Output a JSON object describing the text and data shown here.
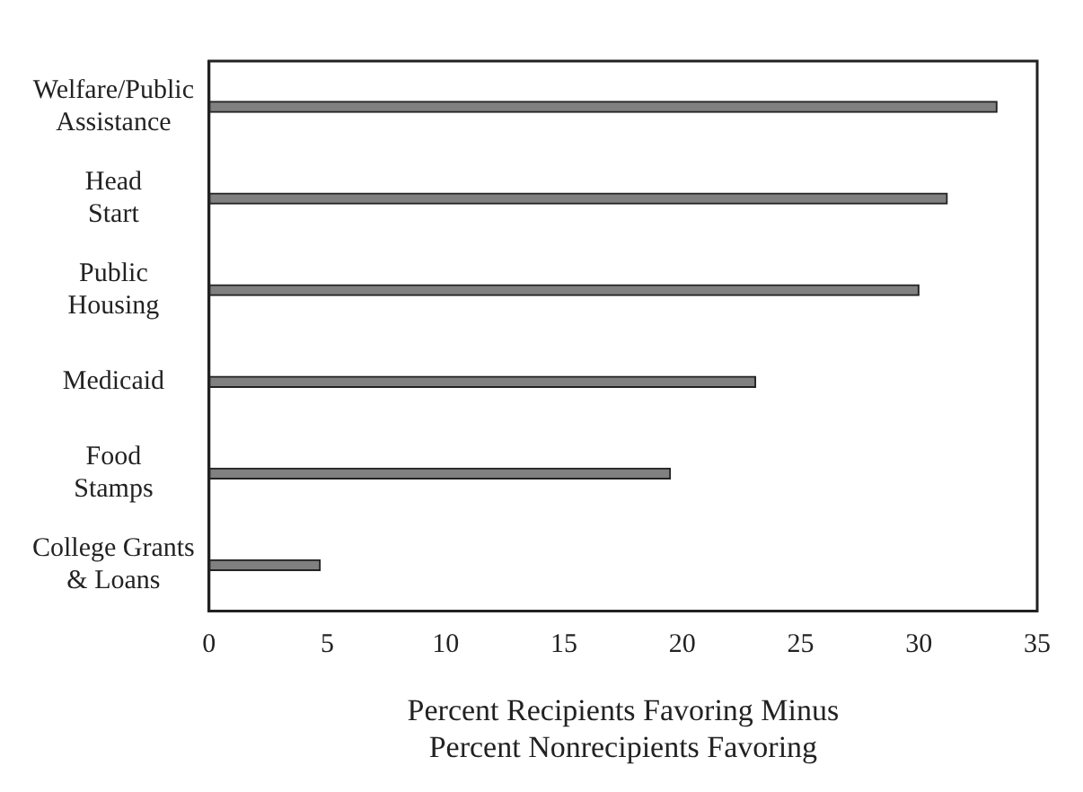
{
  "chart_data": {
    "type": "bar",
    "orientation": "horizontal",
    "categories": [
      "Welfare/Public\nAssistance",
      "Head\nStart",
      "Public\nHousing",
      "Medicaid",
      "Food\nStamps",
      "College Grants\n& Loans"
    ],
    "values": [
      33.3,
      31.2,
      30.0,
      23.1,
      19.5,
      4.7
    ],
    "color": "#808080",
    "xlabel": "Percent Recipients Favoring Minus\nPercent Nonrecipients Favoring",
    "xlim": [
      0,
      35
    ],
    "xticks": [
      0,
      5,
      10,
      15,
      20,
      25,
      30,
      35
    ],
    "grid": false,
    "legend": false
  }
}
